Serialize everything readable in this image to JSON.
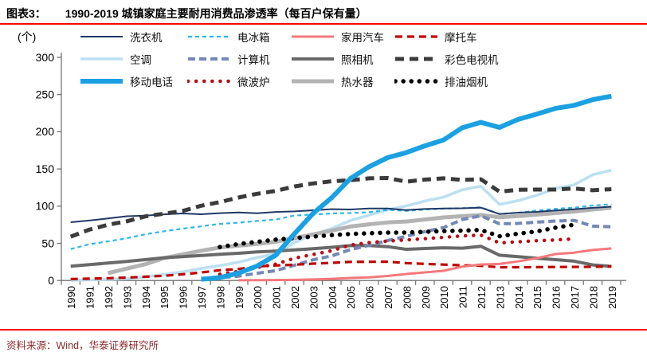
{
  "header": {
    "label": "图表3：",
    "title": "1990-2019 城镇家庭主要耐用消费品渗透率（每百户保有量）"
  },
  "footer": {
    "source": "资料来源：Wind，华泰证券研究所"
  },
  "accent_colors": {
    "rule_red": "#fe0000",
    "source_text": "#8c2b2b"
  },
  "chart_data": {
    "type": "line",
    "unit_label": "(个)",
    "ylim": [
      0,
      300
    ],
    "yticks": [
      0,
      50,
      100,
      150,
      200,
      250,
      300
    ],
    "grid": false,
    "legend_position": "top",
    "x_years": [
      1990,
      1991,
      1992,
      1993,
      1994,
      1995,
      1996,
      1997,
      1998,
      1999,
      2000,
      2001,
      2002,
      2003,
      2004,
      2005,
      2006,
      2007,
      2008,
      2009,
      2010,
      2011,
      2012,
      2013,
      2014,
      2015,
      2016,
      2017,
      2018,
      2019
    ],
    "draw_order": [
      "air_conditioner",
      "water_heater",
      "camera",
      "computer",
      "microwave",
      "motorcycle",
      "car",
      "refrigerator",
      "washing_machine",
      "color_tv",
      "range_hood",
      "mobile_phone"
    ],
    "series": [
      {
        "id": "washing_machine",
        "name": "洗衣机",
        "color": "#1F3864",
        "width": 2,
        "dash": null,
        "values": [
          78.4,
          80.6,
          83.4,
          86.4,
          87.3,
          89.0,
          90.1,
          89.1,
          90.6,
          91.4,
          90.5,
          92.2,
          92.9,
          94.4,
          95.9,
          95.5,
          96.8,
          96.8,
          94.7,
          96.1,
          96.9,
          97.1,
          98.0,
          89.3,
          91.2,
          92.3,
          94.2,
          95.7,
          97.7,
          99.2
        ]
      },
      {
        "id": "refrigerator",
        "name": "电冰箱",
        "color": "#2EB6EA",
        "width": 2.2,
        "dash": "5,4",
        "values": [
          42.3,
          48.7,
          52.6,
          56.7,
          62.1,
          66.2,
          69.7,
          72.8,
          76.1,
          77.7,
          80.1,
          81.9,
          87.4,
          88.7,
          90.2,
          90.7,
          91.8,
          95.0,
          93.6,
          95.4,
          96.6,
          97.2,
          98.5,
          89.5,
          91.1,
          94.0,
          96.4,
          98.0,
          100.9,
          102.5
        ]
      },
      {
        "id": "car",
        "name": "家用汽车",
        "color": "#F4787B",
        "width": 3,
        "dash": null,
        "values": [
          null,
          null,
          null,
          null,
          null,
          null,
          null,
          null,
          null,
          0.3,
          0.5,
          0.6,
          0.9,
          1.4,
          2.2,
          3.4,
          4.3,
          6.1,
          8.8,
          10.9,
          13.1,
          18.6,
          21.5,
          22.3,
          25.7,
          30.0,
          35.5,
          37.5,
          41.0,
          43.2
        ]
      },
      {
        "id": "motorcycle",
        "name": "摩托车",
        "color": "#C00000",
        "width": 3.2,
        "dash": "9,6",
        "values": [
          1.9,
          2.5,
          3.1,
          4.0,
          5.0,
          6.3,
          8.4,
          10.8,
          13.8,
          15.5,
          18.8,
          20.2,
          21.2,
          22.7,
          23.8,
          25.0,
          25.2,
          25.3,
          23.5,
          22.4,
          21.4,
          20.5,
          19.8,
          17.8,
          17.9,
          18.0,
          18.2,
          18.3,
          18.4,
          19.0
        ]
      },
      {
        "id": "air_conditioner",
        "name": "空调",
        "color": "#BCE0F2",
        "width": 3.6,
        "dash": null,
        "values": [
          0.3,
          0.8,
          1.5,
          2.5,
          5.0,
          8.1,
          11.6,
          16.3,
          20.0,
          24.5,
          30.8,
          35.8,
          51.1,
          61.8,
          69.8,
          80.7,
          87.8,
          95.1,
          100.3,
          106.8,
          112.1,
          122.0,
          126.8,
          102.2,
          107.4,
          114.6,
          123.7,
          128.6,
          142.2,
          148.3
        ]
      },
      {
        "id": "computer",
        "name": "计算机",
        "color": "#7388B5",
        "width": 4,
        "dash": "9,5",
        "values": [
          null,
          null,
          null,
          null,
          null,
          null,
          null,
          2.6,
          3.9,
          5.9,
          9.7,
          13.3,
          20.6,
          27.8,
          33.1,
          41.5,
          47.2,
          53.8,
          59.3,
          65.7,
          71.2,
          81.9,
          87.0,
          76.2,
          76.8,
          78.5,
          80.0,
          80.8,
          73.1,
          72.2
        ]
      },
      {
        "id": "camera",
        "name": "照相机",
        "color": "#696969",
        "width": 4,
        "dash": null,
        "values": [
          19.2,
          21.3,
          23.5,
          25.6,
          28.0,
          30.6,
          32.1,
          33.6,
          35.3,
          36.6,
          38.4,
          39.6,
          41.1,
          42.7,
          44.7,
          46.9,
          47.0,
          45.5,
          42.0,
          43.0,
          44.0,
          43.5,
          46.0,
          34.0,
          32.0,
          30.0,
          28.0,
          26.0,
          21.0,
          19.0
        ]
      },
      {
        "id": "color_tv",
        "name": "彩色电视机",
        "color": "#3B3B3B",
        "width": 5,
        "dash": "11,7",
        "values": [
          59.0,
          68.4,
          74.9,
          79.5,
          86.2,
          89.8,
          93.5,
          100.5,
          105.4,
          111.6,
          116.6,
          120.5,
          126.4,
          130.5,
          133.4,
          134.8,
          137.4,
          137.8,
          132.9,
          135.7,
          137.4,
          135.2,
          136.1,
          119.5,
          122.0,
          122.3,
          122.3,
          123.8,
          121.3,
          122.8
        ]
      },
      {
        "id": "mobile_phone",
        "name": "移动电话",
        "color": "#1BA0E2",
        "width": 6,
        "dash": null,
        "values": [
          null,
          null,
          null,
          null,
          null,
          null,
          null,
          1.7,
          4.0,
          10.0,
          19.5,
          34.0,
          62.9,
          90.1,
          111.4,
          137.0,
          152.9,
          165.2,
          172.0,
          181.0,
          188.9,
          205.3,
          212.6,
          205.8,
          216.6,
          223.8,
          231.4,
          235.4,
          243.1,
          247.8
        ]
      },
      {
        "id": "microwave",
        "name": "微波炉",
        "color": "#B01217",
        "width": 4.5,
        "dash": "dot",
        "values": [
          null,
          null,
          null,
          null,
          null,
          null,
          null,
          null,
          8.5,
          12.2,
          17.6,
          22.0,
          30.0,
          35.0,
          40.0,
          47.6,
          51.0,
          53.0,
          54.6,
          56.2,
          58.0,
          60.0,
          61.0,
          50.5,
          52.0,
          53.5,
          54.5,
          56.0,
          null,
          null
        ]
      },
      {
        "id": "water_heater",
        "name": "热水器",
        "color": "#B3B3B3",
        "width": 5,
        "dash": null,
        "values": [
          null,
          null,
          10.0,
          16.0,
          22.0,
          30.1,
          35.0,
          40.0,
          44.3,
          46.9,
          49.1,
          52.0,
          57.0,
          62.0,
          67.0,
          72.6,
          75.5,
          78.0,
          79.3,
          82.0,
          84.8,
          86.5,
          88.0,
          85.1,
          86.6,
          88.5,
          90.7,
          92.7,
          95.5,
          97.9
        ]
      },
      {
        "id": "range_hood",
        "name": "排油烟机",
        "color": "#000000",
        "width": 5.5,
        "dash": "dot",
        "values": [
          null,
          null,
          null,
          null,
          null,
          null,
          null,
          null,
          45.0,
          49.0,
          52.0,
          55.0,
          57.0,
          59.0,
          61.0,
          62.5,
          63.5,
          64.5,
          64.5,
          65.5,
          66.5,
          67.0,
          68.0,
          59.5,
          63.0,
          66.0,
          71.0,
          75.0,
          null,
          null
        ]
      }
    ]
  }
}
